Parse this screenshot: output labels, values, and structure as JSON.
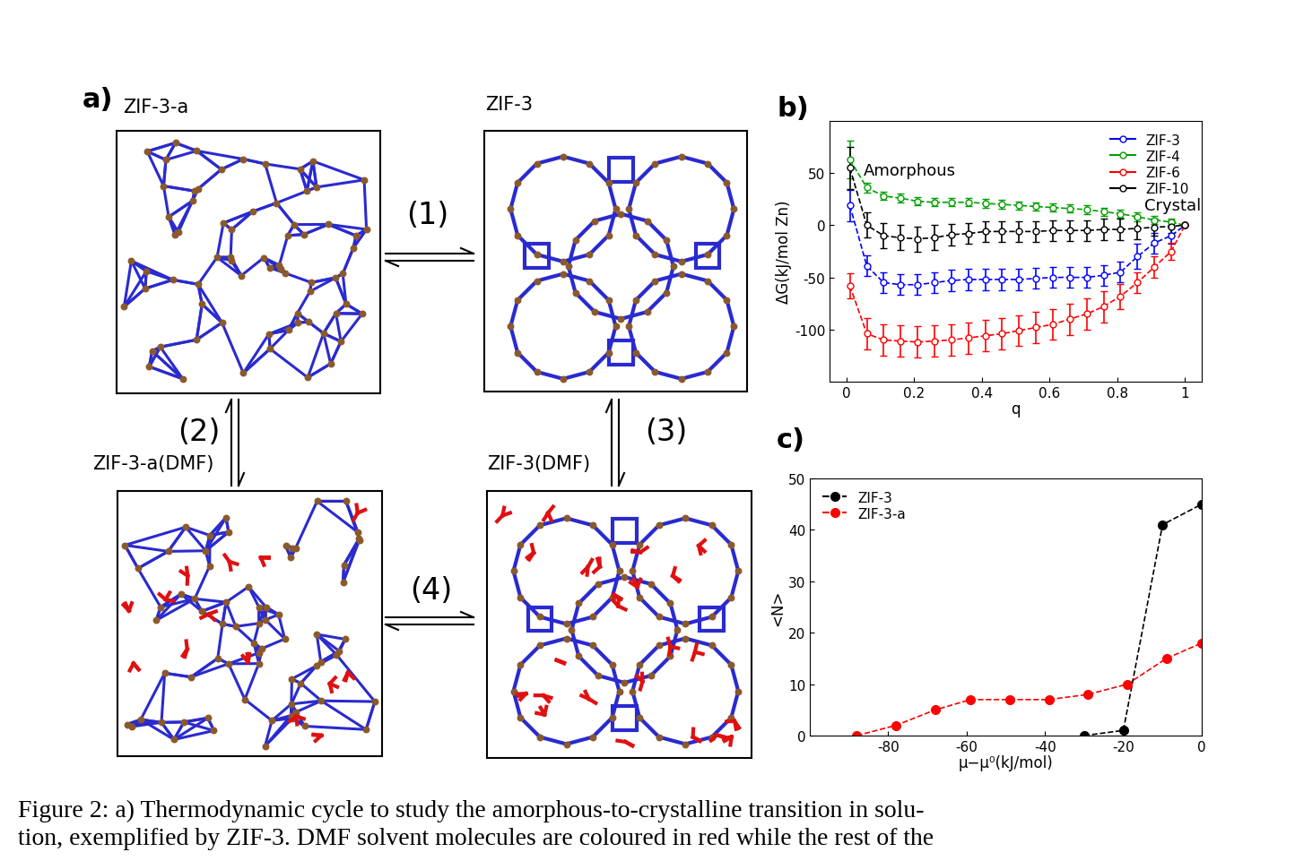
{
  "diagram": {
    "panel_label": "a)",
    "nodes": [
      {
        "label": "ZIF-3-a",
        "state": "amorphous",
        "solvent": false
      },
      {
        "label": "ZIF-3",
        "state": "crystal",
        "solvent": false
      },
      {
        "label": "ZIF-3-a(DMF)",
        "state": "amorphous",
        "solvent": true
      },
      {
        "label": "ZIF-3(DMF)",
        "state": "crystal",
        "solvent": true
      }
    ],
    "edges": [
      {
        "label": "(1)",
        "from": 0,
        "to": 1
      },
      {
        "label": "(2)",
        "from": 0,
        "to": 2
      },
      {
        "label": "(3)",
        "from": 1,
        "to": 3
      },
      {
        "label": "(4)",
        "from": 2,
        "to": 3
      }
    ]
  },
  "chart_data": [
    {
      "type": "line",
      "panel_label": "b)",
      "x_label": "q",
      "y_label": "ΔG(kJ/mol Zn)",
      "xlim": [
        -0.05,
        1.05
      ],
      "xticks": [
        0,
        0.2,
        0.4,
        0.6,
        0.8,
        1
      ],
      "ylim": [
        -150,
        100
      ],
      "yticks": [
        -100,
        -50,
        0,
        50
      ],
      "legend": "upper right",
      "marker": "o",
      "line_style": "dashed",
      "x": [
        0.01,
        0.06,
        0.11,
        0.16,
        0.21,
        0.26,
        0.31,
        0.36,
        0.41,
        0.46,
        0.51,
        0.56,
        0.61,
        0.66,
        0.71,
        0.76,
        0.81,
        0.86,
        0.91,
        0.96,
        1.0
      ],
      "series": [
        {
          "name": "ZIF-3",
          "color": "#0000ff",
          "values": [
            19,
            -39,
            -55,
            -57,
            -57,
            -55,
            -53,
            -52,
            -52,
            -52,
            -52,
            -51,
            -50,
            -50,
            -50,
            -48,
            -45,
            -30,
            -17,
            -10,
            0
          ],
          "error": [
            15,
            10,
            10,
            10,
            10,
            10,
            10,
            10,
            10,
            10,
            10,
            10,
            10,
            10,
            10,
            10,
            10,
            12,
            10,
            8,
            0
          ]
        },
        {
          "name": "ZIF-4",
          "color": "#00a000",
          "values": [
            63,
            36,
            28,
            26,
            23,
            22,
            22,
            22,
            21,
            20,
            19,
            18,
            17,
            16,
            15,
            13,
            11,
            8,
            5,
            3,
            0
          ],
          "error": [
            18,
            5,
            4,
            4,
            4,
            4,
            4,
            4,
            4,
            4,
            4,
            4,
            4,
            4,
            4,
            4,
            4,
            4,
            4,
            3,
            0
          ]
        },
        {
          "name": "ZIF-6",
          "color": "#ff0000",
          "values": [
            -58,
            -104,
            -110,
            -111,
            -112,
            -111,
            -110,
            -108,
            -106,
            -104,
            -101,
            -98,
            -95,
            -90,
            -85,
            -78,
            -68,
            -55,
            -40,
            -25,
            0
          ],
          "error": [
            12,
            15,
            15,
            15,
            15,
            15,
            15,
            15,
            15,
            15,
            15,
            15,
            15,
            15,
            15,
            15,
            12,
            10,
            10,
            8,
            0
          ]
        },
        {
          "name": "ZIF-10",
          "color": "#000000",
          "values": [
            55,
            0,
            -10,
            -12,
            -13,
            -12,
            -9,
            -8,
            -6,
            -6,
            -6,
            -6,
            -5,
            -5,
            -5,
            -4,
            -4,
            -3,
            -2,
            -1,
            0
          ],
          "error": [
            20,
            12,
            12,
            12,
            12,
            12,
            10,
            10,
            10,
            10,
            10,
            10,
            10,
            10,
            10,
            10,
            10,
            10,
            8,
            6,
            0
          ]
        }
      ],
      "annotations": [
        {
          "text": "Amorphous",
          "x": 0.05,
          "y": 53
        },
        {
          "text": "Crystal",
          "x": 0.88,
          "y": 19
        }
      ]
    },
    {
      "type": "line",
      "panel_label": "c)",
      "x_label": "μ−μ⁰(kJ/mol)",
      "y_label": "<N>",
      "xlim": [
        -100,
        0
      ],
      "xticks": [
        -80,
        -60,
        -40,
        -20,
        0
      ],
      "ylim": [
        0,
        50
      ],
      "yticks": [
        0,
        10,
        20,
        30,
        40,
        50
      ],
      "legend": "upper left",
      "marker": "o",
      "line_style": "dashed",
      "series": [
        {
          "name": "ZIF-3",
          "color": "#000000",
          "x": [
            -30,
            -20,
            -10,
            0
          ],
          "values": [
            0,
            1,
            41,
            45
          ]
        },
        {
          "name": "ZIF-3-a",
          "color": "#ff0000",
          "x": [
            -88,
            -78,
            -68,
            -59,
            -49,
            -39,
            -29,
            -19,
            -9,
            0
          ],
          "values": [
            0,
            2,
            5,
            7,
            7,
            7,
            8,
            10,
            15,
            18
          ]
        }
      ]
    }
  ],
  "caption": [
    "Figure 2: a) Thermodynamic cycle to study the amorphous-to-crystalline transition in solu-",
    "tion, exemplified by ZIF-3. DMF solvent molecules are coloured in red while the rest of the"
  ]
}
